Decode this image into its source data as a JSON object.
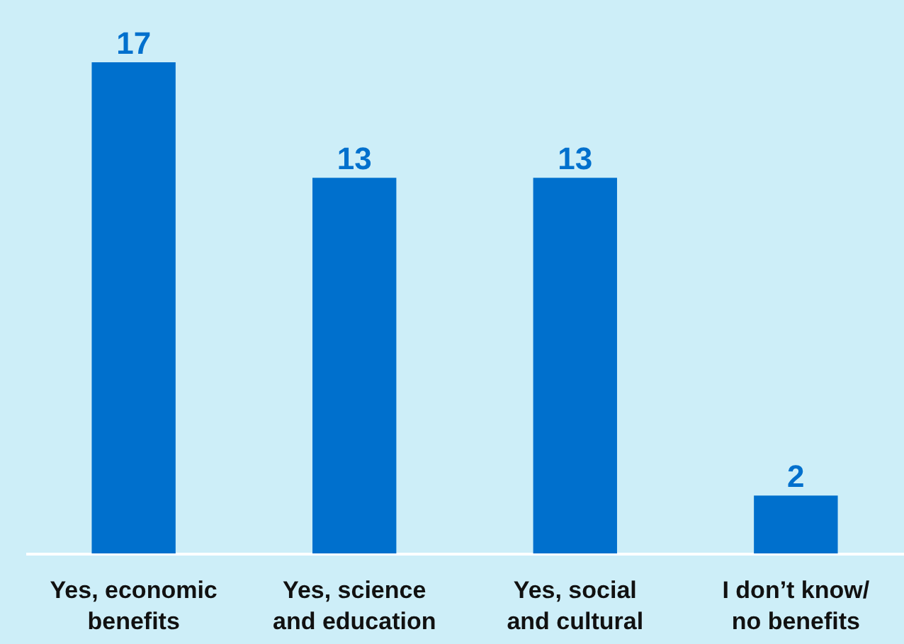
{
  "chart_data": {
    "type": "bar",
    "categories": [
      "Yes, economic\nbenefits",
      "Yes, science\nand education",
      "Yes, social\nand cultural",
      "I don’t know/\nno benefits"
    ],
    "values": [
      17,
      13,
      13,
      2
    ],
    "color": "#0070cd",
    "data_labels": true,
    "grid": false
  }
}
